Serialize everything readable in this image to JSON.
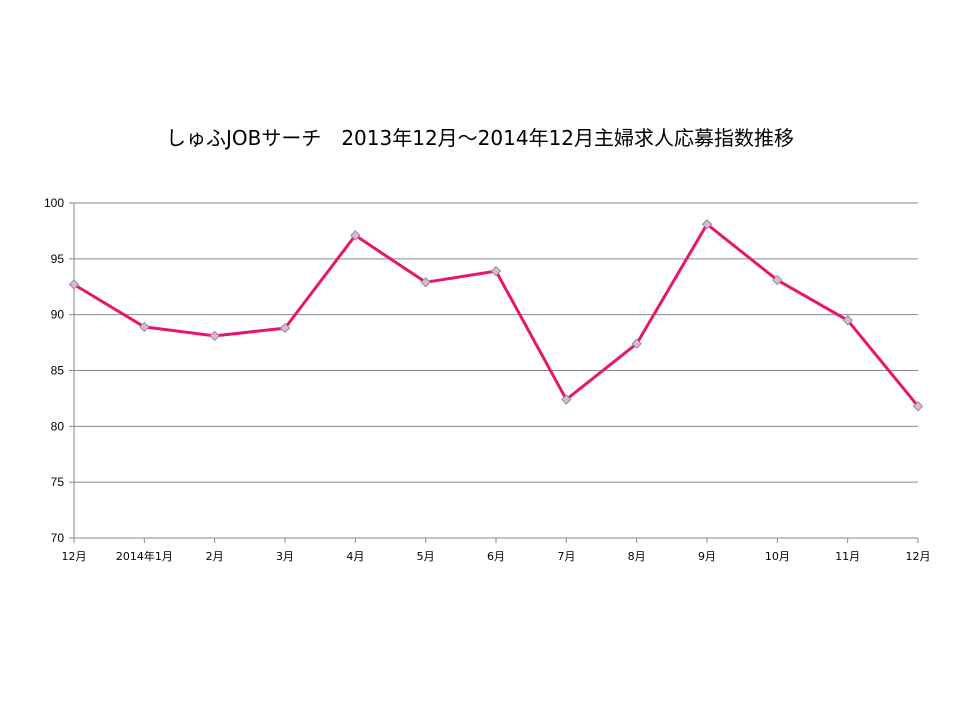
{
  "chart_data": {
    "type": "line",
    "title": "しゅふJOBサーチ　2013年12月～2014年12月主婦求人応募指数推移",
    "xlabel": "",
    "ylabel": "",
    "categories": [
      "12月",
      "2014年1月",
      "2月",
      "3月",
      "4月",
      "5月",
      "6月",
      "7月",
      "8月",
      "9月",
      "10月",
      "11月",
      "12月"
    ],
    "series": [
      {
        "values": [
          92.7,
          88.9,
          88.1,
          88.8,
          97.1,
          92.9,
          93.9,
          82.4,
          87.4,
          98.1,
          93.1,
          89.5,
          81.8
        ]
      }
    ],
    "ylim": [
      70,
      100
    ],
    "yticks": [
      70,
      75,
      80,
      85,
      90,
      95,
      100
    ],
    "grid": true,
    "legend": "none",
    "colors": {
      "line": "#e8156e",
      "marker_fill": "#d9b8d8",
      "marker_stroke": "#9a8a9a",
      "grid": "#8a8a8a"
    }
  }
}
